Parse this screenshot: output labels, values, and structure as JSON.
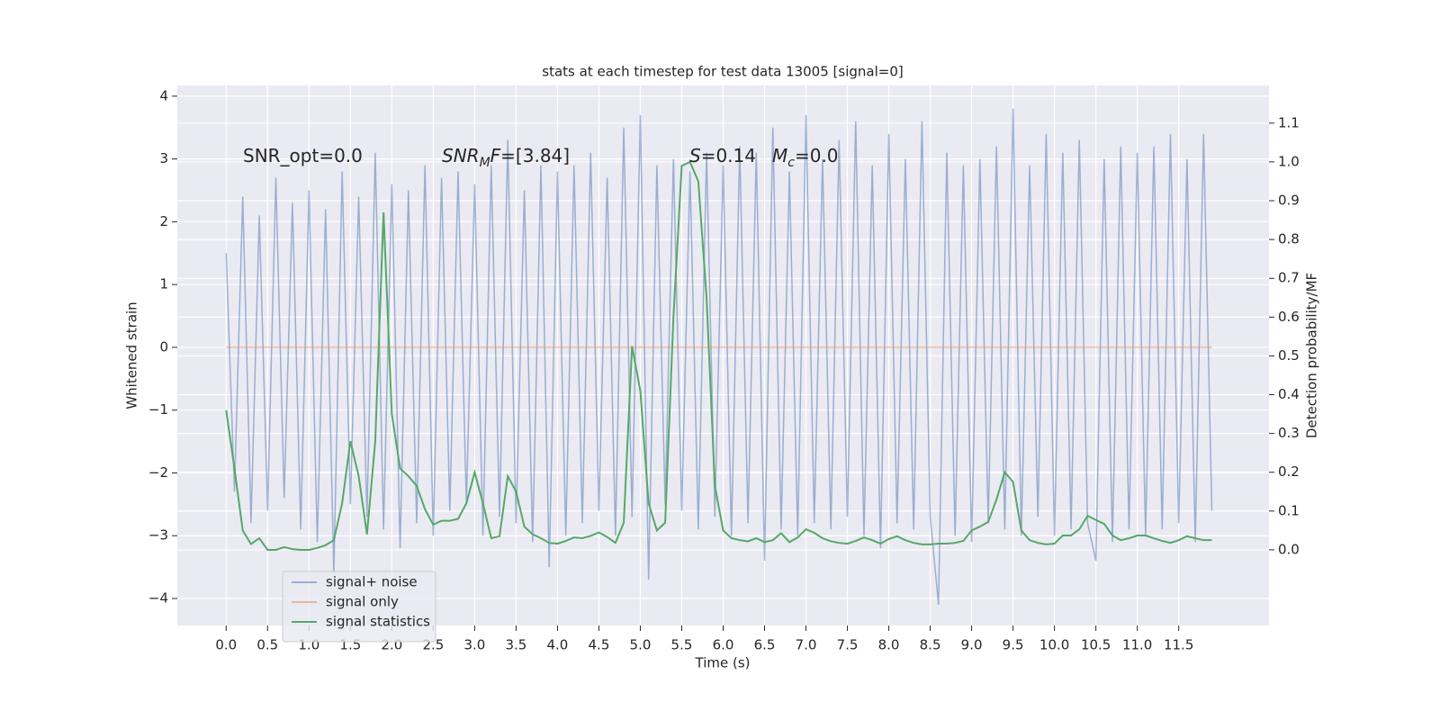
{
  "chart_data": {
    "type": "line",
    "title": "stats at each timestep for test data 13005 [signal=0]",
    "xlabel": "Time (s)",
    "ylabel": "Whitened strain",
    "y2label": "Detection probability/MF",
    "annotations": [
      {
        "parts": [
          {
            "text": "SNR_opt=0.0",
            "italic": false,
            "sub": false
          }
        ]
      },
      {
        "parts": [
          {
            "text": "SNR",
            "italic": true,
            "sub": false
          },
          {
            "text": "M",
            "italic": true,
            "sub": true
          },
          {
            "text": "F",
            "italic": true,
            "sub": false
          },
          {
            "text": "=[3.84]",
            "italic": false,
            "sub": false
          }
        ]
      },
      {
        "parts": [
          {
            "text": "S",
            "italic": true,
            "sub": false
          },
          {
            "text": "=0.14",
            "italic": false,
            "sub": false
          }
        ]
      },
      {
        "parts": [
          {
            "text": "M",
            "italic": true,
            "sub": false
          },
          {
            "text": "c",
            "italic": true,
            "sub": true
          },
          {
            "text": "=0.0",
            "italic": false,
            "sub": false
          }
        ]
      }
    ],
    "grid": true,
    "legend": "lower left",
    "xlim": [
      -0.59,
      12.59
    ],
    "ylim": [
      -4.43,
      4.17
    ],
    "y2lim": [
      -0.195,
      1.197
    ],
    "xticks": [
      {
        "value": 0,
        "label": "0.0"
      },
      0.5,
      {
        "value": 1,
        "label": "1.0"
      },
      1.5,
      {
        "value": 2,
        "label": "2.0"
      },
      2.5,
      {
        "value": 3,
        "label": "3.0"
      },
      3.5,
      {
        "value": 4,
        "label": "4.0"
      },
      4.5,
      {
        "value": 5,
        "label": "5.0"
      },
      5.5,
      {
        "value": 6,
        "label": "6.0"
      },
      6.5,
      {
        "value": 7,
        "label": "7.0"
      },
      7.5,
      {
        "value": 8,
        "label": "8.0"
      },
      8.5,
      {
        "value": 9,
        "label": "9.0"
      },
      9.5,
      {
        "value": 10,
        "label": "10.0"
      },
      10.5,
      {
        "value": 11,
        "label": "11.0"
      },
      11.5
    ],
    "yticks": [
      {
        "value": -4,
        "label": "−4"
      },
      {
        "value": -3,
        "label": "−3"
      },
      {
        "value": -2,
        "label": "−2"
      },
      {
        "value": -1,
        "label": "−1"
      },
      0,
      1,
      2,
      3,
      4
    ],
    "y2ticks": [
      {
        "value": 0,
        "label": "0.0"
      },
      0.1,
      0.2,
      0.3,
      0.4,
      0.5,
      0.6,
      0.7,
      0.8,
      0.9,
      {
        "value": 1,
        "label": "1.0"
      },
      1.1
    ],
    "x": [
      0,
      0.1,
      0.2,
      0.3,
      0.4,
      0.5,
      0.6,
      0.7,
      0.8,
      0.9,
      1,
      1.1,
      1.2,
      1.3,
      1.4,
      1.5,
      1.6,
      1.7,
      1.8,
      1.9,
      2,
      2.1,
      2.2,
      2.3,
      2.4,
      2.5,
      2.6,
      2.7,
      2.8,
      2.9,
      3,
      3.1,
      3.2,
      3.3,
      3.4,
      3.5,
      3.6,
      3.7,
      3.8,
      3.9,
      4,
      4.1,
      4.2,
      4.3,
      4.4,
      4.5,
      4.6,
      4.7,
      4.8,
      4.9,
      5,
      5.1,
      5.2,
      5.3,
      5.4,
      5.5,
      5.6,
      5.7,
      5.8,
      5.9,
      6,
      6.1,
      6.2,
      6.3,
      6.4,
      6.5,
      6.6,
      6.7,
      6.8,
      6.9,
      7,
      7.1,
      7.2,
      7.3,
      7.4,
      7.5,
      7.6,
      7.7,
      7.8,
      7.9,
      8,
      8.1,
      8.2,
      8.3,
      8.4,
      8.5,
      8.6,
      8.7,
      8.8,
      8.9,
      9,
      9.1,
      9.2,
      9.3,
      9.4,
      9.5,
      9.6,
      9.7,
      9.8,
      9.9,
      10,
      10.1,
      10.2,
      10.3,
      10.4,
      10.5,
      10.6,
      10.7,
      10.8,
      10.9,
      11,
      11.1,
      11.2,
      11.3,
      11.4,
      11.5,
      11.6,
      11.7,
      11.8,
      11.9
    ],
    "series": [
      {
        "name": "signal+ noise",
        "color": "#4c72b0",
        "opacity": 0.5,
        "axis": "y",
        "values": [
          1.5,
          -2.3,
          2.4,
          -2.8,
          2.1,
          -2.6,
          2.7,
          -2.4,
          2.3,
          -2.9,
          2.5,
          -3.1,
          2.2,
          -3.6,
          2.8,
          -2.5,
          2.4,
          -2.7,
          3.1,
          -2.9,
          2.6,
          -3.2,
          2.5,
          -2.8,
          2.9,
          -3.0,
          2.7,
          -2.6,
          2.8,
          -2.5,
          2.6,
          -3.0,
          2.9,
          -2.7,
          3.3,
          -2.8,
          2.5,
          -3.1,
          2.9,
          -3.5,
          2.8,
          -3.0,
          2.9,
          -2.8,
          3.1,
          -2.6,
          2.7,
          -3.0,
          3.5,
          -2.7,
          3.7,
          -3.7,
          2.9,
          -2.5,
          3.0,
          -2.6,
          2.8,
          -2.9,
          3.1,
          -2.7,
          2.9,
          -3.0,
          3.2,
          -2.8,
          3.1,
          -3.4,
          3.5,
          -2.9,
          2.8,
          -3.0,
          3.7,
          -2.8,
          3.0,
          -2.9,
          3.3,
          -2.7,
          3.6,
          -3.0,
          2.9,
          -3.2,
          3.4,
          -2.8,
          3.0,
          -2.9,
          3.6,
          -2.7,
          -4.1,
          3.1,
          -3.0,
          2.9,
          -3.1,
          3.0,
          -2.8,
          3.2,
          -2.9,
          3.8,
          -3.0,
          2.9,
          -2.7,
          3.4,
          -3.0,
          3.1,
          -2.9,
          3.3,
          -2.8,
          -3.4,
          3.0,
          -3.1,
          3.2,
          -2.9,
          3.1,
          -3.0,
          3.2,
          -2.9,
          3.4,
          -2.8,
          3.0,
          -3.1,
          3.4,
          -2.6
        ]
      },
      {
        "name": "signal only",
        "color": "#dd8452",
        "opacity": 0.5,
        "axis": "y",
        "values": [
          0,
          0,
          0,
          0,
          0,
          0,
          0,
          0,
          0,
          0,
          0,
          0,
          0,
          0,
          0,
          0,
          0,
          0,
          0,
          0,
          0,
          0,
          0,
          0,
          0,
          0,
          0,
          0,
          0,
          0,
          0,
          0,
          0,
          0,
          0,
          0,
          0,
          0,
          0,
          0,
          0,
          0,
          0,
          0,
          0,
          0,
          0,
          0,
          0,
          0,
          0,
          0,
          0,
          0,
          0,
          0,
          0,
          0,
          0,
          0,
          0,
          0,
          0,
          0,
          0,
          0,
          0,
          0,
          0,
          0,
          0,
          0,
          0,
          0,
          0,
          0,
          0,
          0,
          0,
          0,
          0,
          0,
          0,
          0,
          0,
          0,
          0,
          0,
          0,
          0,
          0,
          0,
          0,
          0,
          0,
          0,
          0,
          0,
          0,
          0,
          0,
          0,
          0,
          0,
          0,
          0,
          0,
          0,
          0,
          0,
          0,
          0,
          0,
          0,
          0,
          0,
          0,
          0,
          0,
          0
        ]
      },
      {
        "name": "signal statistics",
        "color": "#55a868",
        "opacity": 1,
        "axis": "y2",
        "values": [
          0.36,
          0.21,
          0.05,
          0.015,
          0.03,
          0.0,
          0.0,
          0.007,
          0.002,
          0.0,
          0.0,
          0.005,
          0.012,
          0.025,
          0.12,
          0.28,
          0.19,
          0.04,
          0.28,
          0.87,
          0.35,
          0.21,
          0.19,
          0.165,
          0.105,
          0.065,
          0.075,
          0.075,
          0.08,
          0.12,
          0.2,
          0.12,
          0.03,
          0.035,
          0.19,
          0.15,
          0.06,
          0.04,
          0.03,
          0.018,
          0.016,
          0.023,
          0.032,
          0.03,
          0.036,
          0.045,
          0.033,
          0.018,
          0.07,
          0.525,
          0.41,
          0.12,
          0.05,
          0.07,
          0.6,
          0.99,
          1.0,
          0.95,
          0.65,
          0.165,
          0.05,
          0.03,
          0.025,
          0.022,
          0.03,
          0.02,
          0.025,
          0.043,
          0.02,
          0.032,
          0.053,
          0.044,
          0.03,
          0.022,
          0.018,
          0.016,
          0.023,
          0.032,
          0.025,
          0.016,
          0.028,
          0.035,
          0.025,
          0.018,
          0.014,
          0.014,
          0.016,
          0.016,
          0.018,
          0.023,
          0.05,
          0.06,
          0.072,
          0.13,
          0.2,
          0.175,
          0.05,
          0.025,
          0.018,
          0.014,
          0.016,
          0.037,
          0.037,
          0.053,
          0.088,
          0.077,
          0.067,
          0.037,
          0.025,
          0.03,
          0.037,
          0.037,
          0.03,
          0.023,
          0.018,
          0.025,
          0.035,
          0.03,
          0.025,
          0.025
        ]
      }
    ]
  }
}
